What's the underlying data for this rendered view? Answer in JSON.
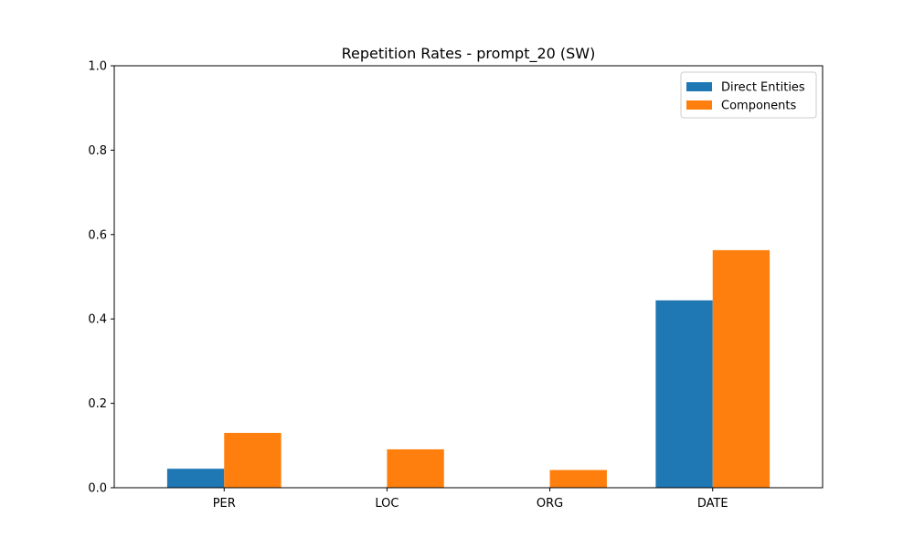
{
  "chart_data": {
    "type": "bar",
    "title": "Repetition Rates - prompt_20 (SW)",
    "xlabel": "",
    "ylabel": "",
    "categories": [
      "PER",
      "LOC",
      "ORG",
      "DATE"
    ],
    "series": [
      {
        "name": "Direct Entities",
        "color": "#1f77b4",
        "values": [
          0.045,
          0.0,
          0.0,
          0.444
        ]
      },
      {
        "name": "Components",
        "color": "#ff7f0e",
        "values": [
          0.13,
          0.091,
          0.042,
          0.563
        ]
      }
    ],
    "ylim": [
      0,
      1.0
    ],
    "yticks": [
      0.0,
      0.2,
      0.4,
      0.6,
      0.8,
      1.0
    ],
    "ytick_labels": [
      "0.0",
      "0.2",
      "0.4",
      "0.6",
      "0.8",
      "1.0"
    ],
    "grid": false,
    "legend_position": "top-right"
  }
}
